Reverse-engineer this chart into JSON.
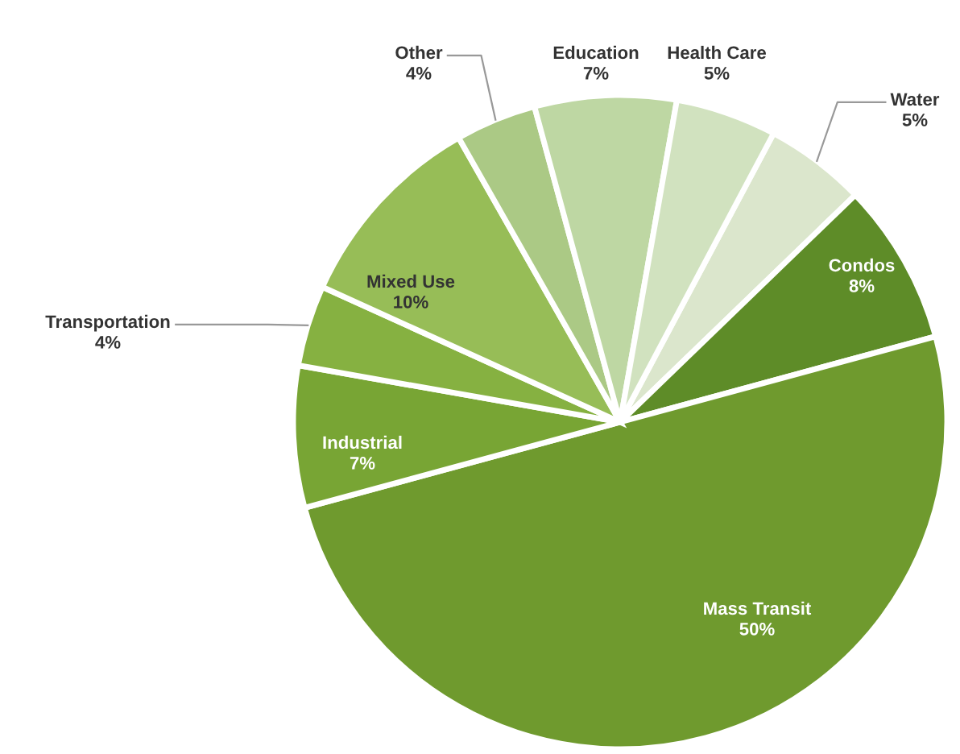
{
  "chart_data": {
    "type": "pie",
    "categories": [
      "Water",
      "Condos",
      "Mass Transit",
      "Industrial",
      "Transportation",
      "Mixed Use",
      "Other",
      "Education",
      "Health Care"
    ],
    "values": [
      5,
      8,
      50,
      7,
      4,
      10,
      4,
      7,
      5
    ],
    "value_labels": [
      "5%",
      "8%",
      "50%",
      "7%",
      "4%",
      "10%",
      "4%",
      "7%",
      "5%"
    ],
    "colors": [
      "#dbe6cc",
      "#5e8c28",
      "#6f9a2e",
      "#78a534",
      "#86b141",
      "#97bd57",
      "#abc985",
      "#bed7a3",
      "#d1e2bf"
    ],
    "legend": false
  }
}
